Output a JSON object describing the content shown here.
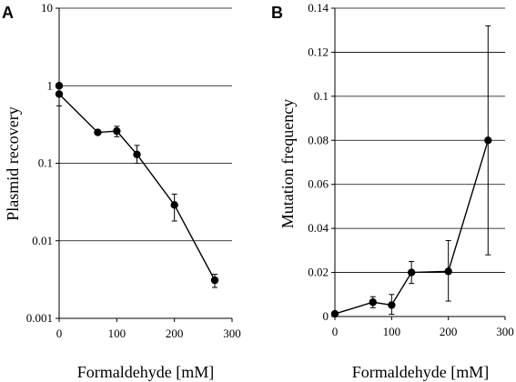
{
  "chart_data": [
    {
      "panel": "A",
      "type": "line",
      "xlabel": "Formaldehyde [mM]",
      "ylabel": "Plasmid recovery",
      "yscale": "log",
      "xlim": [
        0,
        300
      ],
      "ylim": [
        0.001,
        10
      ],
      "xticks": [
        0,
        100,
        200,
        300
      ],
      "xtick_labels": [
        "0",
        "100",
        "200",
        "300"
      ],
      "yticks": [
        0.001,
        0.01,
        0.1,
        1,
        10
      ],
      "ytick_labels": [
        "0.001",
        "0.01",
        "0.1",
        "1",
        "10"
      ],
      "grid": "horizontal",
      "series": [
        {
          "x": [
            0,
            0,
            67,
            100,
            135,
            200,
            270
          ],
          "y": [
            1.0,
            0.78,
            0.25,
            0.26,
            0.13,
            0.029,
            0.0031
          ],
          "err_low": [
            null,
            0.55,
            null,
            0.22,
            0.1,
            0.018,
            0.0025
          ],
          "err_high": [
            null,
            0.95,
            null,
            0.3,
            0.17,
            0.04,
            0.0037
          ],
          "line_from_index": 1
        }
      ]
    },
    {
      "panel": "B",
      "type": "line",
      "xlabel": "Formaldehyde [mM]",
      "ylabel": "Mutation frequency",
      "yscale": "linear",
      "xlim": [
        0,
        300
      ],
      "ylim": [
        0,
        0.14
      ],
      "xticks": [
        0,
        100,
        200,
        300
      ],
      "xtick_labels": [
        "0",
        "100",
        "200",
        "300"
      ],
      "yticks": [
        0,
        0.02,
        0.04,
        0.06,
        0.08,
        0.1,
        0.12,
        0.14
      ],
      "ytick_labels": [
        "0",
        "0.02",
        "0.04",
        "0.06",
        "0.08",
        "0.1",
        "0.12",
        "0.14"
      ],
      "grid": "horizontal",
      "series": [
        {
          "x": [
            0,
            67,
            100,
            135,
            200,
            270
          ],
          "y": [
            0.0012,
            0.0065,
            0.0052,
            0.02,
            0.0205,
            0.08
          ],
          "err_low": [
            0.0003,
            0.004,
            0.001,
            0.015,
            0.007,
            0.028
          ],
          "err_high": [
            0.0022,
            0.009,
            0.01,
            0.025,
            0.0345,
            0.132
          ],
          "line_from_index": 0
        }
      ]
    }
  ]
}
